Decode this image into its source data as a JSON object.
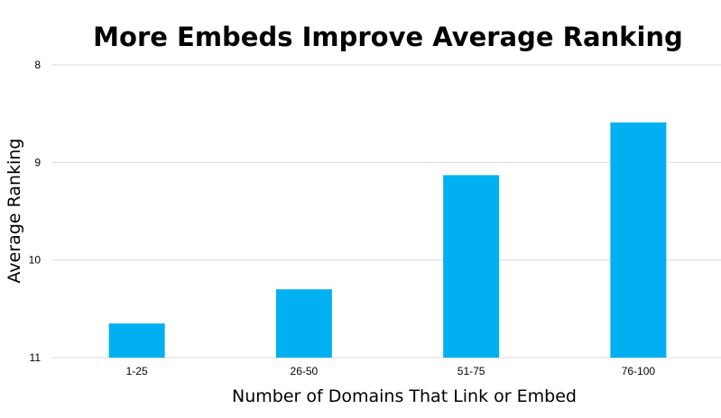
{
  "chart_data": {
    "type": "bar",
    "title": "More Embeds Improve Average Ranking",
    "xlabel": "Number of Domains That Link or Embed",
    "ylabel": "Average Ranking",
    "categories": [
      "1-25",
      "26-50",
      "51-75",
      "76-100"
    ],
    "values": [
      10.65,
      10.3,
      9.13,
      8.59
    ],
    "ylim": [
      8,
      11
    ],
    "y_axis_inverted": true,
    "y_ticks": [
      "8",
      "9",
      "10",
      "11"
    ],
    "grid": true,
    "bar_color": "#00b0f0"
  }
}
